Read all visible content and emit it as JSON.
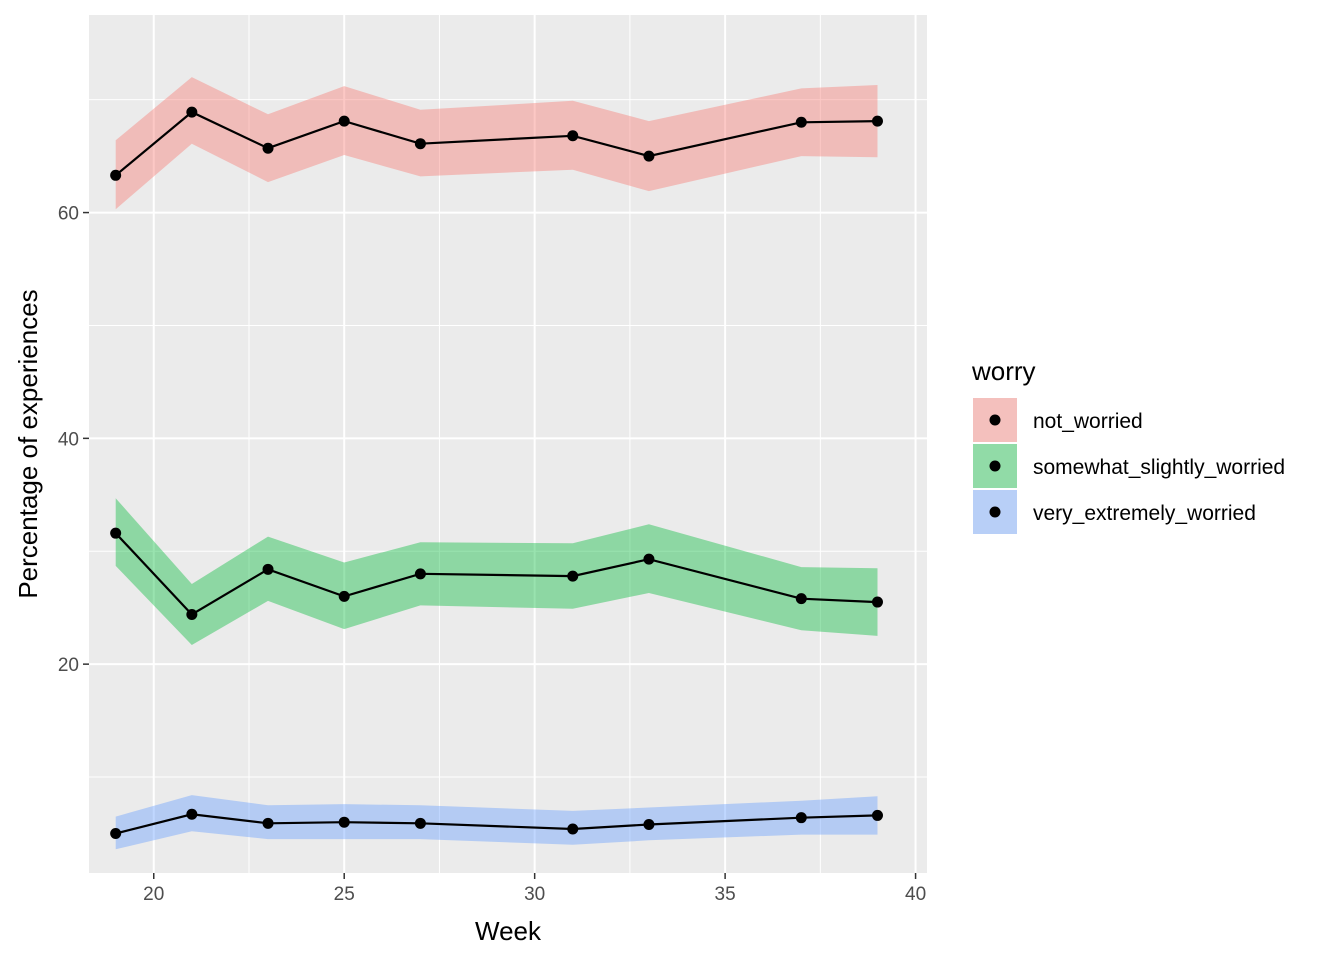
{
  "chart_data": {
    "type": "line",
    "xlabel": "Week",
    "ylabel": "Percentage of experiences",
    "xlim": [
      18.3,
      40.3
    ],
    "ylim": [
      1.5,
      77.5
    ],
    "x_ticks": [
      20,
      25,
      30,
      35,
      40
    ],
    "y_ticks": [
      20,
      40,
      60
    ],
    "grid": true,
    "legend": {
      "title": "worry",
      "placement": "right"
    },
    "x": [
      19,
      21,
      23,
      25,
      27,
      31,
      33,
      37,
      39
    ],
    "series": [
      {
        "name": "not_worried",
        "color": "#F8766D",
        "values": [
          63.3,
          68.9,
          65.7,
          68.1,
          66.1,
          66.8,
          65.0,
          68.0,
          68.1
        ],
        "lower": [
          60.3,
          66.1,
          62.7,
          65.1,
          63.2,
          63.8,
          61.9,
          65.0,
          64.9
        ],
        "upper": [
          66.4,
          72.0,
          68.7,
          71.2,
          69.1,
          69.9,
          68.1,
          71.0,
          71.3
        ]
      },
      {
        "name": "somewhat_slightly_worried",
        "color": "#00BA38",
        "values": [
          31.6,
          24.4,
          28.4,
          26.0,
          28.0,
          27.8,
          29.3,
          25.8,
          25.5
        ],
        "lower": [
          28.7,
          21.7,
          25.6,
          23.1,
          25.2,
          24.9,
          26.3,
          23.0,
          22.5
        ],
        "upper": [
          34.7,
          27.1,
          31.3,
          29.0,
          30.8,
          30.7,
          32.4,
          28.6,
          28.5
        ]
      },
      {
        "name": "very_extremely_worried",
        "color": "#619CFF",
        "values": [
          5.0,
          6.7,
          5.9,
          6.0,
          5.9,
          5.4,
          5.8,
          6.4,
          6.6
        ],
        "lower": [
          3.6,
          5.2,
          4.5,
          4.5,
          4.5,
          4.0,
          4.4,
          4.9,
          4.9
        ],
        "upper": [
          6.5,
          8.4,
          7.5,
          7.6,
          7.5,
          7.0,
          7.3,
          7.9,
          8.3
        ]
      }
    ]
  }
}
